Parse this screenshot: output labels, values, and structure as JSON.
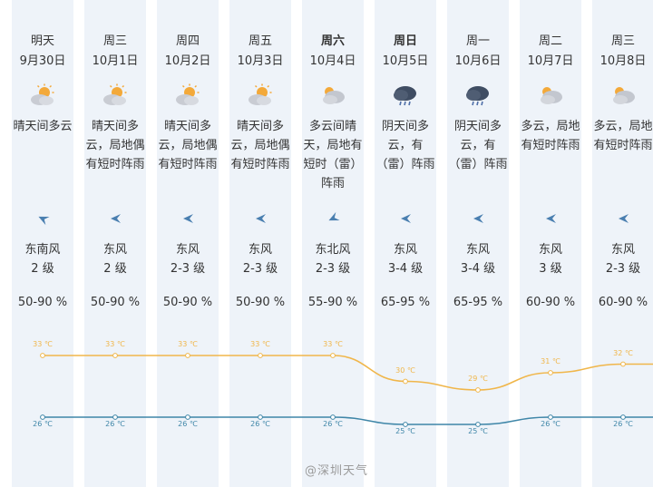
{
  "days": [
    {
      "day": "明天",
      "date": "9月30日",
      "weather_lines": [
        "晴天间多云"
      ],
      "icon": "sun-cloud-icon",
      "wind_dir": "东南风",
      "wind_level": "2 级",
      "humidity": "50-90 %",
      "high": 33,
      "low": 26,
      "high_label": "33 ℃",
      "low_label": "26 ℃",
      "bold": false
    },
    {
      "day": "周三",
      "date": "10月1日",
      "weather_lines": [
        "晴天间多",
        "云，局地偶",
        "有短时阵雨"
      ],
      "icon": "sun-cloud-icon",
      "wind_dir": "东风",
      "wind_level": "2 级",
      "humidity": "50-90 %",
      "high": 33,
      "low": 26,
      "high_label": "33 ℃",
      "low_label": "26 ℃",
      "bold": false
    },
    {
      "day": "周四",
      "date": "10月2日",
      "weather_lines": [
        "晴天间多",
        "云，局地偶",
        "有短时阵雨"
      ],
      "icon": "sun-cloud-icon",
      "wind_dir": "东风",
      "wind_level": "2-3 级",
      "humidity": "50-90 %",
      "high": 33,
      "low": 26,
      "high_label": "33 ℃",
      "low_label": "26 ℃",
      "bold": false
    },
    {
      "day": "周五",
      "date": "10月3日",
      "weather_lines": [
        "晴天间多",
        "云，局地偶",
        "有短时阵雨"
      ],
      "icon": "sun-cloud-icon",
      "wind_dir": "东风",
      "wind_level": "2-3 级",
      "humidity": "50-90 %",
      "high": 33,
      "low": 26,
      "high_label": "33 ℃",
      "low_label": "26 ℃",
      "bold": false
    },
    {
      "day": "周六",
      "date": "10月4日",
      "weather_lines": [
        "多云间晴",
        "天，局地有",
        "短时（雷）",
        "阵雨"
      ],
      "icon": "cloud-sun-icon",
      "wind_dir": "东北风",
      "wind_level": "2-3 级",
      "humidity": "55-90 %",
      "high": 33,
      "low": 26,
      "high_label": "33 ℃",
      "low_label": "26 ℃",
      "bold": true
    },
    {
      "day": "周日",
      "date": "10月5日",
      "weather_lines": [
        "阴天间多",
        "云，有",
        "（雷）阵雨"
      ],
      "icon": "rain-cloud-icon",
      "wind_dir": "东风",
      "wind_level": "3-4 级",
      "humidity": "65-95 %",
      "high": 30,
      "low": 25,
      "high_label": "30 ℃",
      "low_label": "25 ℃",
      "bold": true
    },
    {
      "day": "周一",
      "date": "10月6日",
      "weather_lines": [
        "阴天间多",
        "云，有",
        "（雷）阵雨"
      ],
      "icon": "rain-cloud-icon",
      "wind_dir": "东风",
      "wind_level": "3-4 级",
      "humidity": "65-95 %",
      "high": 29,
      "low": 25,
      "high_label": "29 ℃",
      "low_label": "25 ℃",
      "bold": false
    },
    {
      "day": "周二",
      "date": "10月7日",
      "weather_lines": [
        "多云，局地",
        "有短时阵雨"
      ],
      "icon": "cloud-sun-icon",
      "wind_dir": "东风",
      "wind_level": "3 级",
      "humidity": "60-90 %",
      "high": 31,
      "low": 26,
      "high_label": "31 ℃",
      "low_label": "26 ℃",
      "bold": false
    },
    {
      "day": "周三",
      "date": "10月8日",
      "weather_lines": [
        "多云，局地",
        "有短时阵雨"
      ],
      "icon": "cloud-sun-icon",
      "wind_dir": "东风",
      "wind_level": "2-3 级",
      "humidity": "60-90 %",
      "high": 32,
      "low": 26,
      "high_label": "32 ℃",
      "low_label": "26 ℃",
      "bold": false
    }
  ],
  "colors": {
    "high_line": "#f0b64a",
    "low_line": "#3f86a8",
    "column_bg": "#eef3f9",
    "arrow": "#4a7fb0"
  },
  "watermark": "@深圳天气"
}
